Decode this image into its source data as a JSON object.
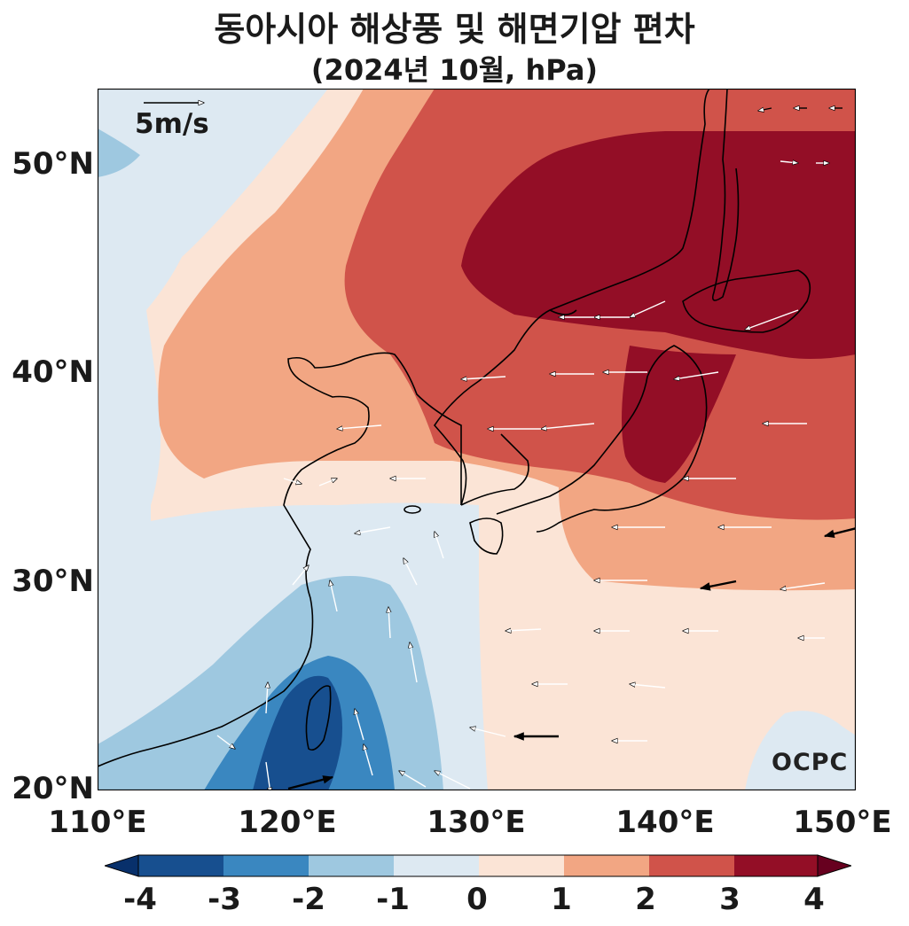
{
  "title": "동아시아 해상풍 및 해면기압 편차",
  "subtitle": "(2024년 10월, hPa)",
  "brand": "OCPC",
  "colors": {
    "d_lt_m4": "#08306b",
    "d_m4": "#174f8f",
    "d_m3": "#3a87c0",
    "d_m2": "#9ec8e0",
    "d_m1": "#dde9f2",
    "d_0": "#fbe4d6",
    "d_1": "#f2a683",
    "d_2": "#d0534a",
    "d_3": "#930e26",
    "d_gt_4": "#67001f",
    "coast": "#000000"
  },
  "chart_data": {
    "type": "heatmap",
    "variable": "sea level pressure anomaly with surface wind anomaly vectors",
    "xlim": [
      110,
      150
    ],
    "ylim": [
      20,
      53.5
    ],
    "x_ticks": [
      110,
      120,
      130,
      140,
      150
    ],
    "x_tick_labels": [
      "110°E",
      "120°E",
      "130°E",
      "140°E",
      "150°E"
    ],
    "y_ticks": [
      20,
      30,
      40,
      50
    ],
    "y_tick_labels": [
      "20°N",
      "30°N",
      "40°N",
      "50°N"
    ],
    "colorbar": {
      "levels": [
        -4,
        -3,
        -2,
        -1,
        0,
        1,
        2,
        3,
        4
      ],
      "tick_labels": [
        "-4",
        "-3",
        "-2",
        "-1",
        "0",
        "1",
        "2",
        "3",
        "4"
      ],
      "extend": "both"
    },
    "reference_vector": {
      "magnitude": 5,
      "label": "5m/s"
    },
    "regions": [
      {
        "level": "0 to 1",
        "description": "northern China, western Japan sea area, north Pacific band 20-32N"
      },
      {
        "level": "1 to 2",
        "description": "northeast China band, south of Japan"
      },
      {
        "level": "2 to 3",
        "description": "Manchuria, Korea, east of Japan"
      },
      {
        "level": "3 to 4",
        "description": "Sea of Japan, Hokkaido, Sakhalin (max)"
      },
      {
        "level": "-1 to 0",
        "description": "Yellow / East China Sea, far west Siberia"
      },
      {
        "level": "-2 to -1",
        "description": "south China coast, Philippine Sea west"
      },
      {
        "level": "-4 to -3",
        "description": "Taiwan (min)"
      }
    ],
    "wind_pattern": "easterly anomalies across 20-45N; northerly over Taiwan Strait; westerly arrows near 20N, 120-125E"
  }
}
